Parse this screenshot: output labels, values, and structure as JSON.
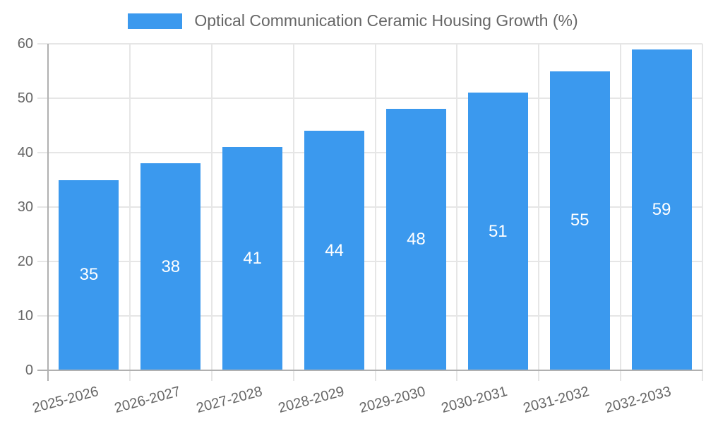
{
  "chart_data": {
    "type": "bar",
    "title": "Optical Communication Ceramic Housing Growth (%)",
    "legend_label": "Optical Communication Ceramic Housing Growth (%)",
    "legend_position": "top-center",
    "categories": [
      "2025-2026",
      "2026-2027",
      "2027-2028",
      "2028-2029",
      "2029-2030",
      "2030-2031",
      "2031-2032",
      "2032-2033"
    ],
    "values": [
      35,
      38,
      41,
      44,
      48,
      51,
      55,
      59
    ],
    "bar_labels": [
      "35",
      "38",
      "41",
      "44",
      "48",
      "51",
      "55",
      "59"
    ],
    "xlabel": "",
    "ylabel": "",
    "ylim": [
      0,
      60
    ],
    "yticks": [
      0,
      10,
      20,
      30,
      40,
      50,
      60
    ],
    "grid": true,
    "x_label_rotation_deg": -15,
    "colors": {
      "bar": "#3b99ee",
      "grid": "#e6e6e6",
      "axis": "#b0b0b0",
      "text": "#666666",
      "bar_value_text": "#ffffff",
      "background": "#ffffff"
    }
  }
}
